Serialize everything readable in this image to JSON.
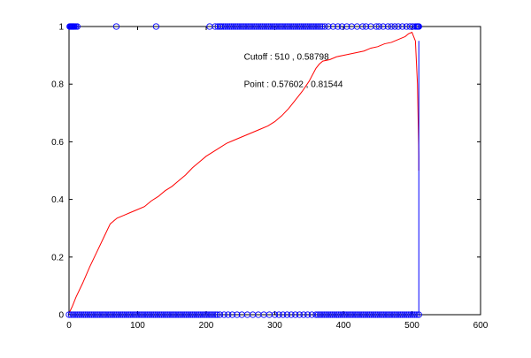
{
  "chart_data": {
    "type": "line",
    "title": "",
    "xlabel": "",
    "ylabel": "",
    "xlim": [
      0,
      600
    ],
    "ylim": [
      0,
      1
    ],
    "x_ticks": [
      0,
      100,
      200,
      300,
      400,
      500,
      600
    ],
    "y_ticks": [
      0,
      0.2,
      0.4,
      0.6,
      0.8,
      1
    ],
    "grid": false,
    "legend": "none",
    "annotations": [
      {
        "text": "Cutoff : 510 , 0.58798",
        "x": 255,
        "y": 0.885
      },
      {
        "text": "Point : 0.57602 , 0.81544",
        "x": 255,
        "y": 0.79
      }
    ],
    "series": [
      {
        "kind": "line",
        "color": "#ff0000",
        "x": [
          0,
          5,
          10,
          20,
          30,
          40,
          50,
          60,
          70,
          80,
          90,
          100,
          110,
          120,
          130,
          140,
          150,
          160,
          170,
          180,
          190,
          200,
          210,
          220,
          230,
          240,
          250,
          260,
          270,
          280,
          290,
          300,
          310,
          320,
          330,
          340,
          350,
          360,
          365,
          370,
          380,
          390,
          400,
          410,
          420,
          430,
          440,
          450,
          460,
          470,
          480,
          490,
          495,
          500,
          505,
          508,
          510,
          510
        ],
        "y": [
          0.005,
          0.03,
          0.06,
          0.11,
          0.165,
          0.215,
          0.265,
          0.315,
          0.335,
          0.345,
          0.355,
          0.365,
          0.375,
          0.395,
          0.41,
          0.43,
          0.445,
          0.465,
          0.485,
          0.51,
          0.53,
          0.55,
          0.565,
          0.58,
          0.595,
          0.605,
          0.615,
          0.625,
          0.635,
          0.645,
          0.655,
          0.67,
          0.69,
          0.715,
          0.745,
          0.775,
          0.81,
          0.855,
          0.87,
          0.88,
          0.885,
          0.895,
          0.9,
          0.905,
          0.91,
          0.915,
          0.925,
          0.93,
          0.94,
          0.945,
          0.955,
          0.965,
          0.975,
          0.98,
          0.95,
          0.8,
          0.55,
          0.5
        ]
      },
      {
        "kind": "line",
        "color": "#0000ff",
        "x": [
          510,
          510
        ],
        "y": [
          0.95,
          0
        ]
      },
      {
        "kind": "scatter",
        "color": "#0000ff",
        "marker": "circle-open",
        "x": [
          1,
          2,
          3,
          4,
          5,
          6,
          7,
          8,
          10,
          12,
          69,
          127,
          205,
          213,
          217,
          220,
          222,
          225,
          228,
          231,
          234,
          237,
          240,
          243,
          246,
          249,
          252,
          255,
          258,
          261,
          264,
          267,
          270,
          273,
          276,
          279,
          282,
          285,
          288,
          291,
          294,
          297,
          300,
          303,
          306,
          309,
          312,
          315,
          318,
          321,
          324,
          327,
          330,
          333,
          336,
          339,
          342,
          345,
          348,
          351,
          354,
          357,
          360,
          363,
          366,
          369,
          373,
          378,
          385,
          392,
          398,
          405,
          412,
          420,
          428,
          433,
          440,
          448,
          452,
          458,
          465,
          470,
          475,
          480,
          486,
          492,
          497,
          501,
          505,
          507,
          508,
          509,
          510
        ],
        "y": [
          1,
          1,
          1,
          1,
          1,
          1,
          1,
          1,
          1,
          1,
          1,
          1,
          1,
          1,
          1,
          1,
          1,
          1,
          1,
          1,
          1,
          1,
          1,
          1,
          1,
          1,
          1,
          1,
          1,
          1,
          1,
          1,
          1,
          1,
          1,
          1,
          1,
          1,
          1,
          1,
          1,
          1,
          1,
          1,
          1,
          1,
          1,
          1,
          1,
          1,
          1,
          1,
          1,
          1,
          1,
          1,
          1,
          1,
          1,
          1,
          1,
          1,
          1,
          1,
          1,
          1,
          1,
          1,
          1,
          1,
          1,
          1,
          1,
          1,
          1,
          1,
          1,
          1,
          1,
          1,
          1,
          1,
          1,
          1,
          1,
          1,
          1,
          1,
          1,
          1,
          1,
          1,
          1
        ]
      },
      {
        "kind": "scatter",
        "color": "#0000ff",
        "marker": "circle-open",
        "x": [
          0,
          3,
          6,
          9,
          12,
          15,
          18,
          21,
          24,
          27,
          30,
          33,
          36,
          39,
          42,
          45,
          48,
          51,
          54,
          57,
          60,
          63,
          66,
          69,
          72,
          75,
          78,
          81,
          84,
          87,
          90,
          93,
          96,
          99,
          102,
          105,
          108,
          111,
          114,
          117,
          120,
          123,
          126,
          129,
          132,
          135,
          138,
          141,
          144,
          147,
          150,
          153,
          156,
          159,
          162,
          165,
          168,
          171,
          174,
          177,
          180,
          183,
          186,
          189,
          192,
          195,
          198,
          201,
          204,
          207,
          210,
          213,
          216,
          220,
          226,
          232,
          238,
          245,
          252,
          260,
          268,
          276,
          284,
          292,
          300,
          306,
          312,
          318,
          324,
          330,
          336,
          342,
          348,
          354,
          360,
          363,
          366,
          369,
          372,
          375,
          378,
          381,
          384,
          387,
          390,
          393,
          396,
          399,
          402,
          405,
          408,
          411,
          414,
          417,
          420,
          423,
          426,
          429,
          432,
          435,
          438,
          441,
          444,
          447,
          450,
          453,
          456,
          459,
          462,
          465,
          468,
          471,
          474,
          477,
          480,
          483,
          486,
          489,
          492,
          495,
          498,
          501,
          504,
          507,
          510
        ],
        "y": [
          0,
          0,
          0,
          0,
          0,
          0,
          0,
          0,
          0,
          0,
          0,
          0,
          0,
          0,
          0,
          0,
          0,
          0,
          0,
          0,
          0,
          0,
          0,
          0,
          0,
          0,
          0,
          0,
          0,
          0,
          0,
          0,
          0,
          0,
          0,
          0,
          0,
          0,
          0,
          0,
          0,
          0,
          0,
          0,
          0,
          0,
          0,
          0,
          0,
          0,
          0,
          0,
          0,
          0,
          0,
          0,
          0,
          0,
          0,
          0,
          0,
          0,
          0,
          0,
          0,
          0,
          0,
          0,
          0,
          0,
          0,
          0,
          0,
          0,
          0,
          0,
          0,
          0,
          0,
          0,
          0,
          0,
          0,
          0,
          0,
          0,
          0,
          0,
          0,
          0,
          0,
          0,
          0,
          0,
          0,
          0,
          0,
          0,
          0,
          0,
          0,
          0,
          0,
          0,
          0,
          0,
          0,
          0,
          0,
          0,
          0,
          0,
          0,
          0,
          0,
          0,
          0,
          0,
          0,
          0,
          0,
          0,
          0,
          0,
          0,
          0,
          0,
          0,
          0,
          0,
          0,
          0,
          0,
          0,
          0,
          0,
          0,
          0,
          0,
          0,
          0,
          0,
          0,
          0,
          0
        ]
      }
    ]
  }
}
